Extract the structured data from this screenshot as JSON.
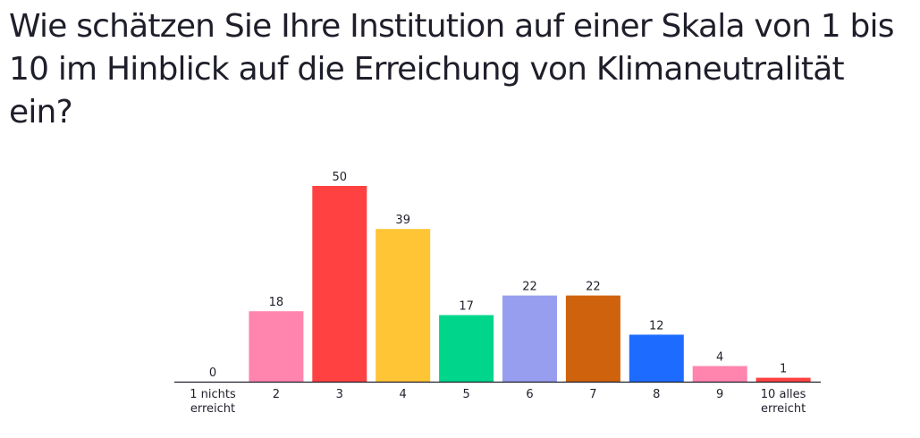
{
  "question": {
    "title": "Wie schätzen Sie Ihre Institution auf einer Skala von 1 bis 10 im Hinblick auf die Erreichung von Klimaneutralität ein?"
  },
  "chart_data": {
    "type": "bar",
    "title": "Wie schätzen Sie Ihre Institution auf einer Skala von 1 bis 10 im Hinblick auf die Erreichung von Klimaneutralität ein?",
    "xlabel": "",
    "ylabel": "",
    "grid": false,
    "legend": "none",
    "ylim": [
      0,
      50
    ],
    "categories": [
      [
        "1 nichts",
        "erreicht"
      ],
      [
        "2"
      ],
      [
        "3"
      ],
      [
        "4"
      ],
      [
        "5"
      ],
      [
        "6"
      ],
      [
        "7"
      ],
      [
        "8"
      ],
      [
        "9"
      ],
      [
        "10 alles",
        "erreicht"
      ]
    ],
    "values": [
      0,
      18,
      50,
      39,
      17,
      22,
      22,
      12,
      4,
      1
    ],
    "colors": [
      "#9ca3af",
      "#ff85ae",
      "#ff4141",
      "#ffc535",
      "#00d68b",
      "#979ef0",
      "#cf620c",
      "#1e6bff",
      "#ff85ae",
      "#ff4141"
    ],
    "axis_color": "#1f1f2b",
    "label_color": "#1f1f2b"
  }
}
